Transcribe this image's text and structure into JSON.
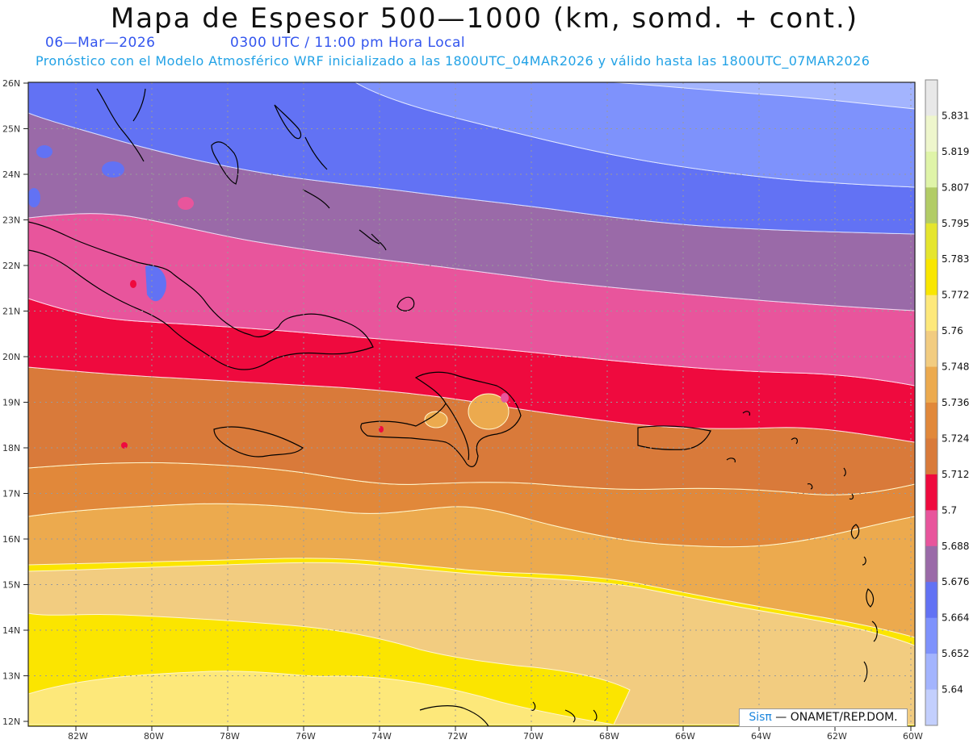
{
  "title": "Mapa de Espesor 500—1000 (km, somd. + cont.)",
  "date_label": "06—Mar—2026",
  "time_label": "0300 UTC / 11:00 pm Hora Local",
  "forecast_label": "Pronóstico con el Modelo Atmosférico WRF inicializado a las 1800UTC_04MAR2026 y válido hasta las  1800UTC_07MAR2026",
  "latitude_labels": [
    "26N",
    "25N",
    "24N",
    "23N",
    "22N",
    "21N",
    "20N",
    "19N",
    "18N",
    "17N",
    "16N",
    "15N",
    "14N",
    "13N",
    "12N"
  ],
  "longitude_labels": [
    "82W",
    "80W",
    "78W",
    "76W",
    "74W",
    "72W",
    "70W",
    "68W",
    "66W",
    "64W",
    "62W",
    "60W"
  ],
  "colorbar": {
    "labels": [
      "5.831",
      "5.819",
      "5.807",
      "5.795",
      "5.783",
      "5.772",
      "5.76",
      "5.748",
      "5.736",
      "5.724",
      "5.712",
      "5.7",
      "5.688",
      "5.676",
      "5.664",
      "5.652",
      "5.64"
    ],
    "colors": [
      "#e8e8e8",
      "#eef6cc",
      "#dff4a8",
      "#b2cc66",
      "#e5e52e",
      "#f9e600",
      "#fde87a",
      "#f2cc80",
      "#ecaa4e",
      "#e1883a",
      "#d97a3a",
      "#ef0a3e",
      "#e8559c",
      "#9a6aa8",
      "#6272f4",
      "#7e92fc",
      "#a3b4fe",
      "#c3cffd"
    ]
  },
  "credit": {
    "brand": "Sisπ",
    "text": " — ONAMET/REP.DOM."
  }
}
